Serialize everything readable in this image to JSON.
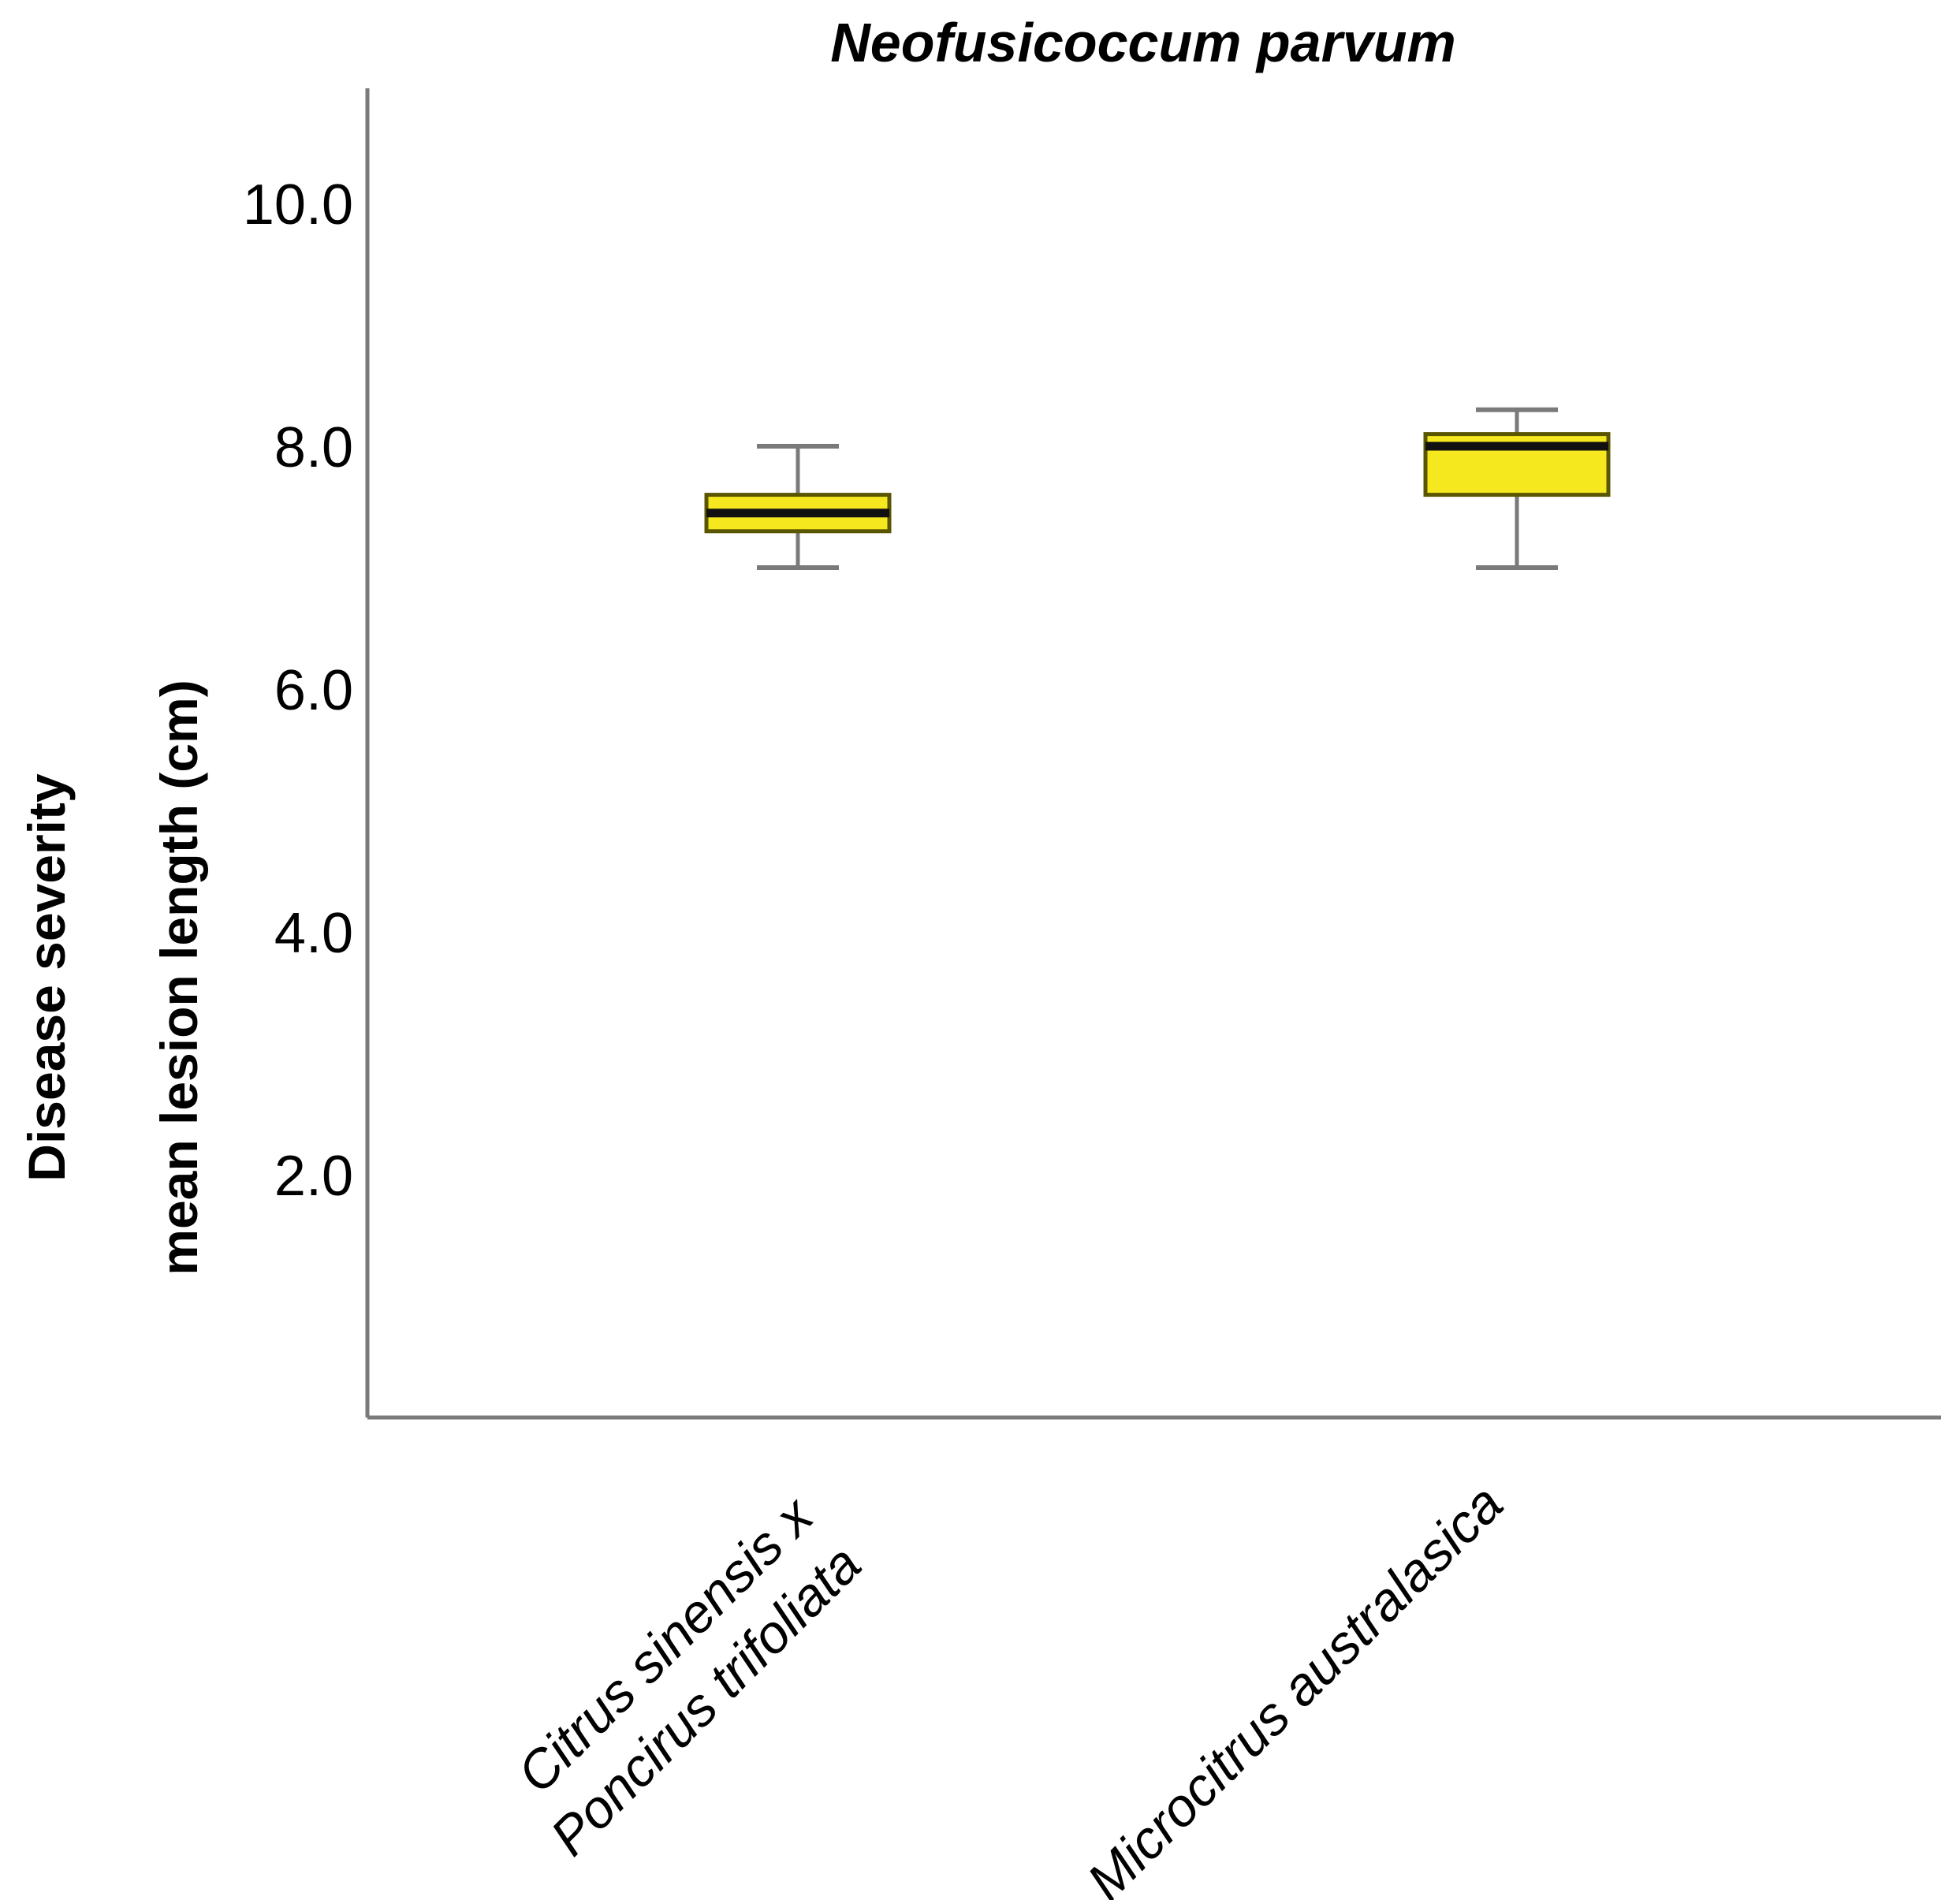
{
  "chart_data": {
    "type": "box",
    "title": "Neofusicoccum parvum",
    "ylabel_lines": [
      "Disease severity",
      "mean lesion length (cm)"
    ],
    "xlabel": "",
    "ylim": [
      0,
      10.8
    ],
    "yticks": [
      2.0,
      4.0,
      6.0,
      8.0,
      10.0
    ],
    "ytick_labels": [
      "2.0",
      "4.0",
      "6.0",
      "8.0",
      "10.0"
    ],
    "grid": false,
    "legend": false,
    "categories": [
      [
        "Citrus sinensis x",
        "Poncirus trifoliata"
      ],
      [
        "Microcitrus australasica"
      ]
    ],
    "boxes": [
      {
        "min": 7.0,
        "q1": 7.3,
        "median": 7.45,
        "q3": 7.6,
        "max": 8.0
      },
      {
        "min": 7.0,
        "q1": 7.6,
        "median": 8.0,
        "q3": 8.1,
        "max": 8.3
      }
    ],
    "colors": {
      "box_fill": "#f5e81f",
      "box_edge": "#5a5500",
      "median": "#111111",
      "whisker": "#7a7a7a",
      "axis": "#7a7a7a"
    }
  }
}
